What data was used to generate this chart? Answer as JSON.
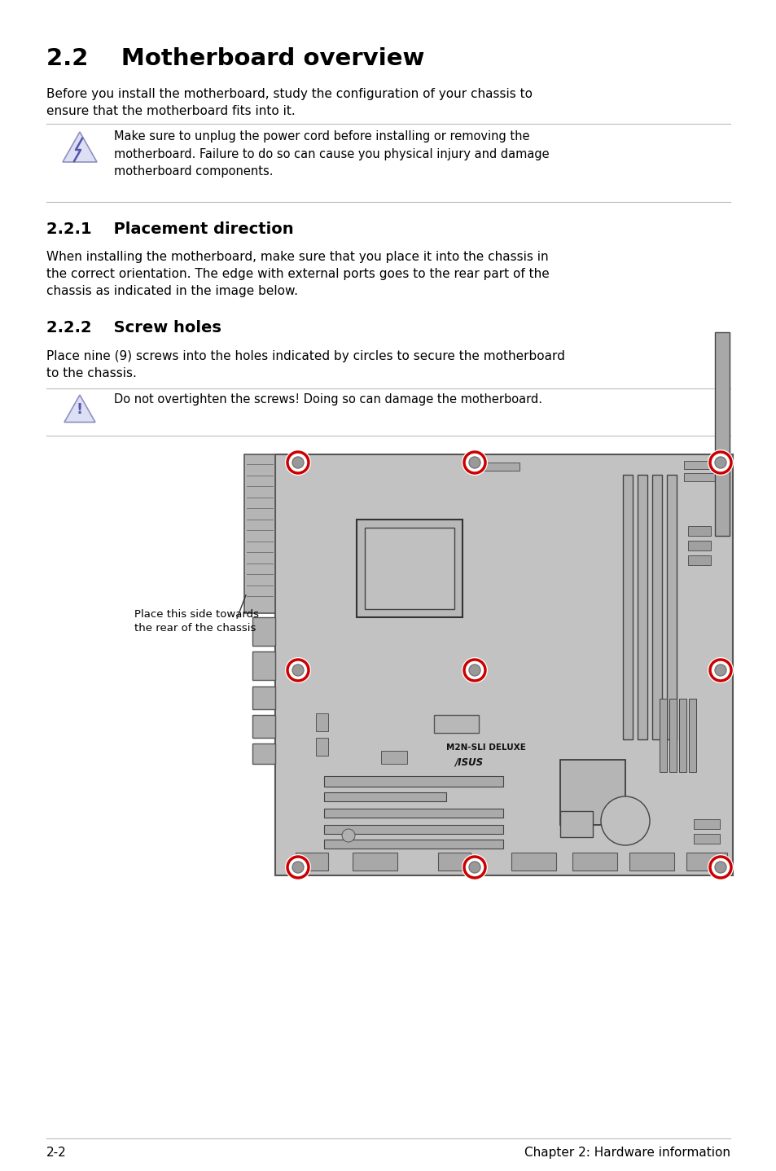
{
  "bg_color": "#ffffff",
  "title": "2.2    Motherboard overview",
  "body1": "Before you install the motherboard, study the configuration of your chassis to\nensure that the motherboard fits into it.",
  "warning1": "Make sure to unplug the power cord before installing or removing the\nmotherboard. Failure to do so can cause you physical injury and damage\nmotherboard components.",
  "sub1_title": "2.2.1    Placement direction",
  "sub1_body": "When installing the motherboard, make sure that you place it into the chassis in\nthe correct orientation. The edge with external ports goes to the rear part of the\nchassis as indicated in the image below.",
  "sub2_title": "2.2.2    Screw holes",
  "sub2_body": "Place nine (9) screws into the holes indicated by circles to secure the motherboard\nto the chassis.",
  "warning2": "Do not overtighten the screws! Doing so can damage the motherboard.",
  "annotation": "Place this side towards\nthe rear of the chassis",
  "footer_left": "2-2",
  "footer_right": "Chapter 2: Hardware information",
  "line_color": "#bbbbbb",
  "text_color": "#000000",
  "board_color": "#c2c2c2",
  "board_border": "#555555",
  "screw_ring": "#cc0000",
  "icon_fill": "#dde0f5",
  "icon_edge": "#9090c0"
}
